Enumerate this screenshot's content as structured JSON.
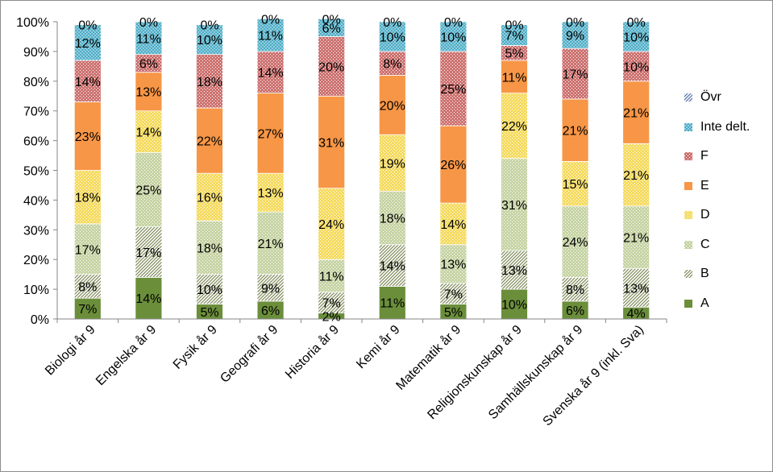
{
  "chart_data": {
    "type": "bar",
    "stacked": true,
    "categories": [
      "Biologi år 9",
      "Engelska år 9",
      "Fysik år 9",
      "Geografi år 9",
      "Historia år 9",
      "Kemi år 9",
      "Matematik år 9",
      "Religionskunskap år 9",
      "Samhällskunskap år 9",
      "Svenska år 9 (inkl. Sva)"
    ],
    "series": [
      {
        "name": "A",
        "values": [
          7,
          14,
          5,
          6,
          2,
          11,
          5,
          10,
          6,
          4
        ],
        "color": "#6b8e3b",
        "pattern": "solid"
      },
      {
        "name": "B",
        "values": [
          8,
          17,
          10,
          9,
          7,
          14,
          7,
          13,
          8,
          13
        ],
        "color": "#7f8a5a",
        "pattern": "diag"
      },
      {
        "name": "C",
        "values": [
          17,
          25,
          18,
          21,
          11,
          18,
          13,
          31,
          24,
          21
        ],
        "color": "#b9c98e",
        "pattern": "dots"
      },
      {
        "name": "D",
        "values": [
          18,
          14,
          16,
          13,
          24,
          19,
          14,
          22,
          15,
          21
        ],
        "color": "#f2d23a",
        "pattern": "dots"
      },
      {
        "name": "E",
        "values": [
          23,
          13,
          22,
          27,
          31,
          20,
          26,
          11,
          21,
          21
        ],
        "color": "#f79646",
        "pattern": "solid"
      },
      {
        "name": "F",
        "values": [
          14,
          6,
          18,
          14,
          20,
          8,
          25,
          5,
          17,
          10
        ],
        "color": "#c0504d",
        "pattern": "dots"
      },
      {
        "name": "Inte delt.",
        "values": [
          12,
          11,
          10,
          11,
          6,
          10,
          10,
          7,
          9,
          10
        ],
        "color": "#4bacc6",
        "pattern": "check"
      },
      {
        "name": "Övr",
        "values": [
          0,
          0,
          0,
          0,
          0,
          0,
          0,
          0,
          0,
          0
        ],
        "color": "#4f6fa8",
        "pattern": "diag"
      }
    ],
    "ylim": [
      0,
      100
    ],
    "yticks": [
      "0%",
      "10%",
      "20%",
      "30%",
      "40%",
      "50%",
      "60%",
      "70%",
      "80%",
      "90%",
      "100%"
    ],
    "grid": false,
    "legend_position": "right",
    "legend_order": [
      "Övr",
      "Inte delt.",
      "F",
      "E",
      "D",
      "C",
      "B",
      "A"
    ]
  }
}
